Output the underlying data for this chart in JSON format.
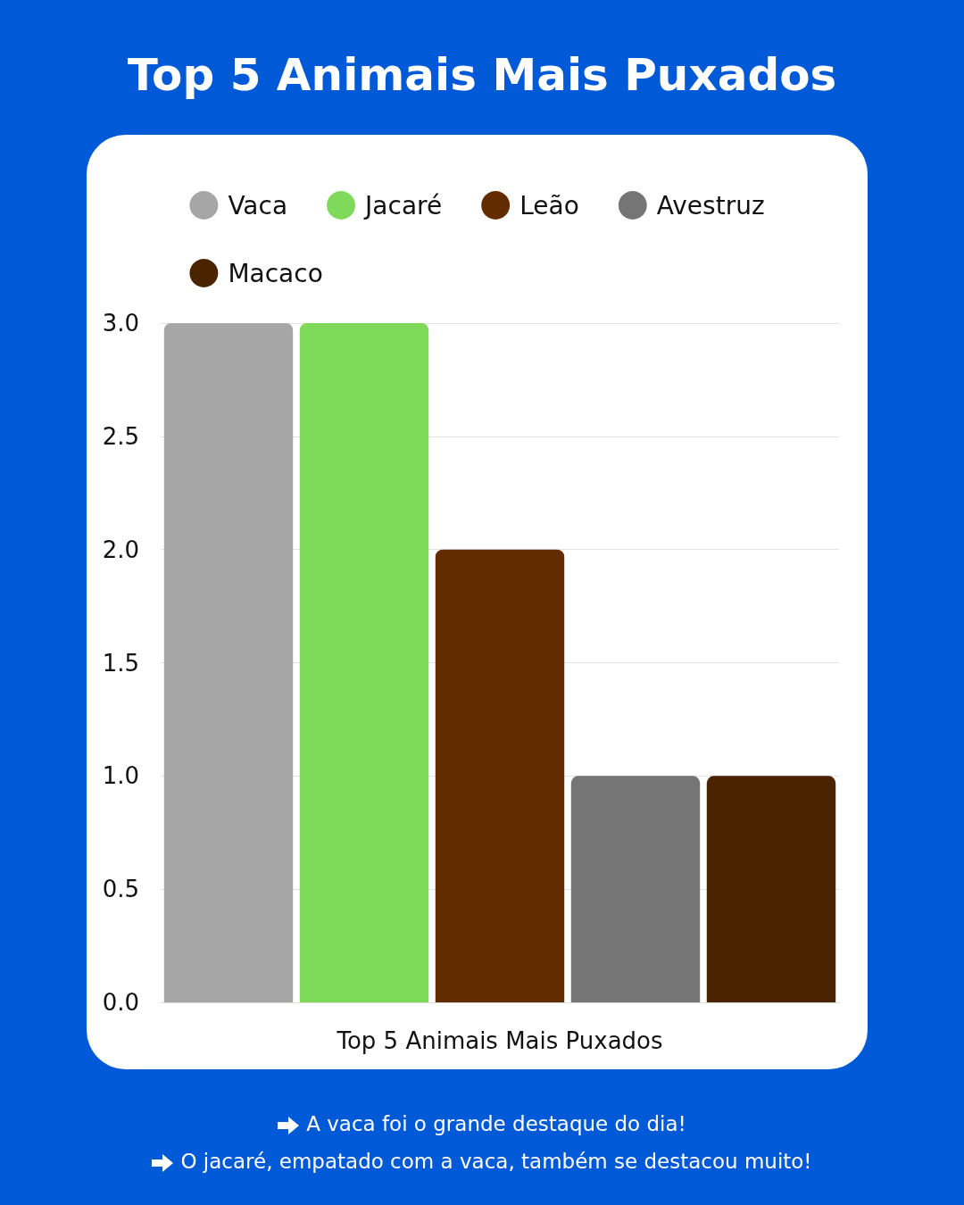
{
  "chart_data": {
    "type": "bar",
    "title": "Top 5 Animais Mais Puxados",
    "xlabel": "Top 5 Animais Mais Puxados",
    "categories": [
      null,
      null,
      null,
      null,
      null
    ],
    "stacked": true,
    "series": [
      {
        "name": "Vaca",
        "color": "#a6a6a6",
        "values": [
          3,
          null,
          null,
          null,
          null
        ]
      },
      {
        "name": "Jacaré",
        "color": "#7fd95a",
        "values": [
          null,
          3,
          null,
          null,
          null
        ]
      },
      {
        "name": "Leão",
        "color": "#632b00",
        "values": [
          null,
          null,
          2,
          null,
          null
        ]
      },
      {
        "name": "Avestruz",
        "color": "#757575",
        "values": [
          null,
          null,
          null,
          1,
          null
        ]
      },
      {
        "name": "Macaco",
        "color": "#4a2300",
        "values": [
          null,
          null,
          null,
          null,
          1
        ]
      }
    ],
    "ylim": [
      0,
      3
    ],
    "yticks": [
      {
        "value": 0,
        "label": "0.0"
      },
      {
        "value": 0.5,
        "label": "0.5"
      },
      {
        "value": 1,
        "label": "1.0"
      },
      {
        "value": 1.5,
        "label": "1.5"
      },
      {
        "value": 2,
        "label": "2.0"
      },
      {
        "value": 2.5,
        "label": "2.5"
      },
      {
        "value": 3,
        "label": "3.0"
      }
    ],
    "grid": "y",
    "legend": "top",
    "annotations": [
      "A vaca foi o grande destaque do dia!",
      "O jacaré, empatado com a vaca, também se destacou muito!"
    ]
  }
}
